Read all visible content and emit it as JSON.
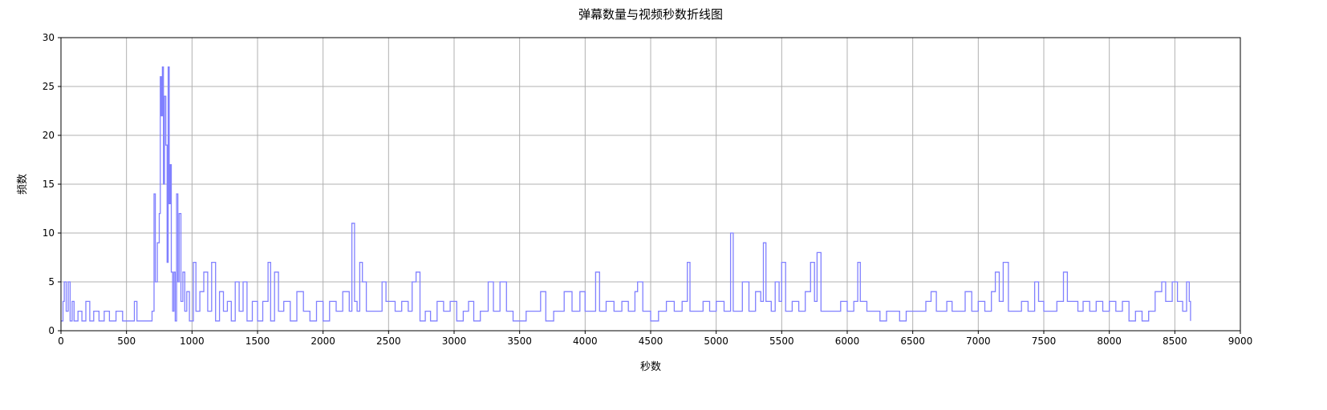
{
  "chart_data": {
    "type": "line",
    "title": "弹幕数量与视频秒数折线图",
    "xlabel": "秒数",
    "ylabel": "频数",
    "xlim": [
      0,
      9000
    ],
    "ylim": [
      0,
      30
    ],
    "xticks": [
      0,
      500,
      1000,
      1500,
      2000,
      2500,
      3000,
      3500,
      4000,
      4500,
      5000,
      5500,
      6000,
      6500,
      7000,
      7500,
      8000,
      8500,
      9000
    ],
    "yticks": [
      0,
      5,
      10,
      15,
      20,
      25,
      30
    ],
    "grid": true,
    "line_color": "#8080ff",
    "series": [
      {
        "values": [
          [
            0,
            1
          ],
          [
            15,
            3
          ],
          [
            25,
            5
          ],
          [
            40,
            2
          ],
          [
            55,
            5
          ],
          [
            70,
            1
          ],
          [
            85,
            3
          ],
          [
            100,
            1
          ],
          [
            130,
            2
          ],
          [
            160,
            1
          ],
          [
            190,
            3
          ],
          [
            220,
            1
          ],
          [
            250,
            2
          ],
          [
            290,
            1
          ],
          [
            330,
            2
          ],
          [
            370,
            1
          ],
          [
            420,
            2
          ],
          [
            470,
            1
          ],
          [
            500,
            1
          ],
          [
            560,
            3
          ],
          [
            580,
            1
          ],
          [
            650,
            1
          ],
          [
            695,
            2
          ],
          [
            710,
            14
          ],
          [
            720,
            5
          ],
          [
            735,
            9
          ],
          [
            750,
            12
          ],
          [
            758,
            26
          ],
          [
            766,
            22
          ],
          [
            774,
            27
          ],
          [
            782,
            15
          ],
          [
            790,
            24
          ],
          [
            800,
            19
          ],
          [
            810,
            7
          ],
          [
            818,
            27
          ],
          [
            826,
            13
          ],
          [
            834,
            17
          ],
          [
            842,
            6
          ],
          [
            852,
            2
          ],
          [
            862,
            6
          ],
          [
            872,
            1
          ],
          [
            882,
            14
          ],
          [
            892,
            5
          ],
          [
            902,
            12
          ],
          [
            915,
            3
          ],
          [
            930,
            6
          ],
          [
            945,
            2
          ],
          [
            960,
            4
          ],
          [
            980,
            1
          ],
          [
            1010,
            7
          ],
          [
            1030,
            2
          ],
          [
            1060,
            4
          ],
          [
            1090,
            6
          ],
          [
            1120,
            2
          ],
          [
            1150,
            7
          ],
          [
            1180,
            1
          ],
          [
            1210,
            4
          ],
          [
            1240,
            2
          ],
          [
            1270,
            3
          ],
          [
            1300,
            1
          ],
          [
            1330,
            5
          ],
          [
            1360,
            2
          ],
          [
            1390,
            5
          ],
          [
            1420,
            1
          ],
          [
            1460,
            3
          ],
          [
            1500,
            1
          ],
          [
            1540,
            3
          ],
          [
            1580,
            7
          ],
          [
            1600,
            1
          ],
          [
            1630,
            6
          ],
          [
            1660,
            2
          ],
          [
            1700,
            3
          ],
          [
            1750,
            1
          ],
          [
            1800,
            4
          ],
          [
            1850,
            2
          ],
          [
            1900,
            1
          ],
          [
            1950,
            3
          ],
          [
            2000,
            1
          ],
          [
            2050,
            3
          ],
          [
            2100,
            2
          ],
          [
            2150,
            4
          ],
          [
            2200,
            2
          ],
          [
            2220,
            11
          ],
          [
            2240,
            3
          ],
          [
            2260,
            2
          ],
          [
            2280,
            7
          ],
          [
            2300,
            5
          ],
          [
            2330,
            2
          ],
          [
            2380,
            2
          ],
          [
            2430,
            2
          ],
          [
            2450,
            5
          ],
          [
            2480,
            3
          ],
          [
            2510,
            3
          ],
          [
            2550,
            2
          ],
          [
            2600,
            3
          ],
          [
            2650,
            2
          ],
          [
            2680,
            5
          ],
          [
            2710,
            6
          ],
          [
            2740,
            1
          ],
          [
            2780,
            2
          ],
          [
            2820,
            1
          ],
          [
            2870,
            3
          ],
          [
            2920,
            2
          ],
          [
            2970,
            3
          ],
          [
            3020,
            1
          ],
          [
            3070,
            2
          ],
          [
            3110,
            3
          ],
          [
            3150,
            1
          ],
          [
            3200,
            2
          ],
          [
            3260,
            5
          ],
          [
            3300,
            2
          ],
          [
            3350,
            5
          ],
          [
            3400,
            2
          ],
          [
            3450,
            1
          ],
          [
            3500,
            1
          ],
          [
            3550,
            2
          ],
          [
            3600,
            2
          ],
          [
            3660,
            4
          ],
          [
            3700,
            1
          ],
          [
            3760,
            2
          ],
          [
            3840,
            4
          ],
          [
            3900,
            2
          ],
          [
            3960,
            4
          ],
          [
            4000,
            2
          ],
          [
            4060,
            2
          ],
          [
            4080,
            6
          ],
          [
            4110,
            2
          ],
          [
            4160,
            3
          ],
          [
            4220,
            2
          ],
          [
            4280,
            3
          ],
          [
            4330,
            2
          ],
          [
            4380,
            4
          ],
          [
            4400,
            5
          ],
          [
            4440,
            2
          ],
          [
            4500,
            1
          ],
          [
            4560,
            2
          ],
          [
            4620,
            3
          ],
          [
            4680,
            2
          ],
          [
            4740,
            3
          ],
          [
            4780,
            7
          ],
          [
            4800,
            2
          ],
          [
            4850,
            2
          ],
          [
            4900,
            3
          ],
          [
            4950,
            2
          ],
          [
            5000,
            3
          ],
          [
            5060,
            2
          ],
          [
            5110,
            10
          ],
          [
            5130,
            2
          ],
          [
            5200,
            5
          ],
          [
            5250,
            2
          ],
          [
            5300,
            4
          ],
          [
            5340,
            3
          ],
          [
            5360,
            9
          ],
          [
            5380,
            3
          ],
          [
            5420,
            2
          ],
          [
            5450,
            5
          ],
          [
            5480,
            3
          ],
          [
            5500,
            7
          ],
          [
            5530,
            2
          ],
          [
            5580,
            3
          ],
          [
            5630,
            2
          ],
          [
            5680,
            4
          ],
          [
            5720,
            7
          ],
          [
            5750,
            3
          ],
          [
            5770,
            8
          ],
          [
            5800,
            2
          ],
          [
            5850,
            2
          ],
          [
            5900,
            2
          ],
          [
            5950,
            3
          ],
          [
            6000,
            2
          ],
          [
            6050,
            3
          ],
          [
            6080,
            7
          ],
          [
            6100,
            3
          ],
          [
            6150,
            2
          ],
          [
            6200,
            2
          ],
          [
            6250,
            1
          ],
          [
            6300,
            2
          ],
          [
            6350,
            2
          ],
          [
            6400,
            1
          ],
          [
            6450,
            2
          ],
          [
            6500,
            2
          ],
          [
            6550,
            2
          ],
          [
            6600,
            3
          ],
          [
            6640,
            4
          ],
          [
            6680,
            2
          ],
          [
            6720,
            2
          ],
          [
            6760,
            3
          ],
          [
            6800,
            2
          ],
          [
            6850,
            2
          ],
          [
            6900,
            4
          ],
          [
            6950,
            2
          ],
          [
            7000,
            3
          ],
          [
            7050,
            2
          ],
          [
            7100,
            4
          ],
          [
            7130,
            6
          ],
          [
            7160,
            3
          ],
          [
            7190,
            7
          ],
          [
            7230,
            2
          ],
          [
            7280,
            2
          ],
          [
            7330,
            3
          ],
          [
            7380,
            2
          ],
          [
            7430,
            5
          ],
          [
            7460,
            3
          ],
          [
            7500,
            2
          ],
          [
            7550,
            2
          ],
          [
            7600,
            3
          ],
          [
            7650,
            6
          ],
          [
            7680,
            3
          ],
          [
            7720,
            3
          ],
          [
            7760,
            2
          ],
          [
            7800,
            3
          ],
          [
            7850,
            2
          ],
          [
            7900,
            3
          ],
          [
            7950,
            2
          ],
          [
            8000,
            3
          ],
          [
            8050,
            2
          ],
          [
            8100,
            3
          ],
          [
            8150,
            1
          ],
          [
            8200,
            2
          ],
          [
            8250,
            1
          ],
          [
            8300,
            2
          ],
          [
            8350,
            4
          ],
          [
            8400,
            5
          ],
          [
            8430,
            3
          ],
          [
            8480,
            5
          ],
          [
            8520,
            3
          ],
          [
            8560,
            2
          ],
          [
            8590,
            5
          ],
          [
            8610,
            3
          ],
          [
            8620,
            1
          ]
        ]
      }
    ]
  }
}
